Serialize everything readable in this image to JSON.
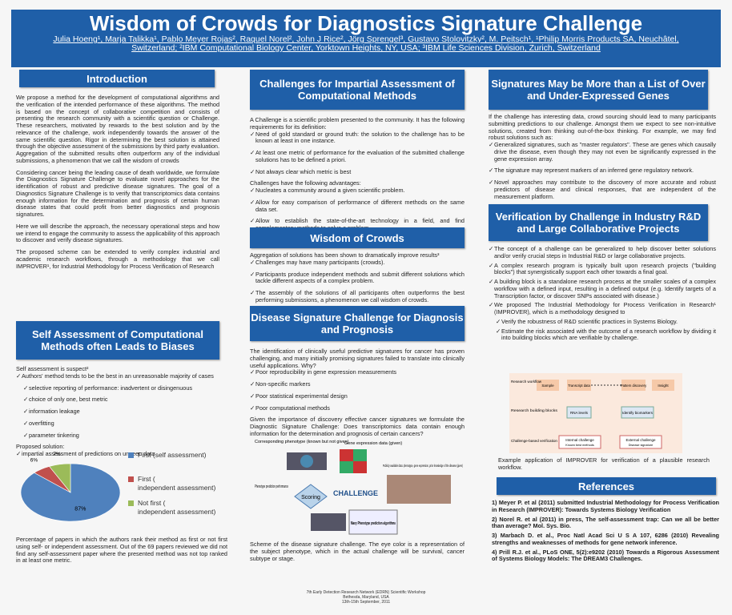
{
  "header": {
    "title": "Wisdom of Crowds for Diagnostics Signature Challenge",
    "authors": "Julia Hoeng¹, Marja Talikka¹, Pablo Meyer Rojas², Raquel Norel², John J Rice², Jörg Sprengel³, Gustavo Stolovitzky², M. Peitsch¹, ¹Philip Morris Products SA, Neuchâtel, Switzerland; ²IBM Computational Biology Center, Yorktown Heights, NY, USA; ³IBM Life Sciences Division, Zurich, Switzerland"
  },
  "intro": {
    "heading": "Introduction",
    "paragraphs": [
      "We propose a method for the development of computational algorithms and the verification of the intended performance of these algorithms. The method is based on the concept of collaborative competition and consists of presenting the research community with a scientific question or Challenge. These researchers, motivated by rewards to the best solution and by the relevance of the challenge, work independently towards the answer of the same scientific question. Rigor in determining the best solution is attained through the objective assessment of the submissions by third party evaluation. Aggregation of the submitted results often outperform any of the individual submissions, a phenomenon that we call the wisdom of crowds",
      "Considering cancer being the leading cause of death worldwide, we formulate the Diagnostics Signature Challenge to evaluate novel approaches for the identification of robust and predictive disease signatures. The goal of a Diagnostics Signature Challenge is to verify that transcriptomics data contains enough information for the determination and prognosis of certain human disease states that could profit from better diagnostics and prognosis signatures.",
      "Here we will describe the approach, the necessary operational steps and how we intend to engage the community to assess the applicability of this approach to discover and verify disease signatures.",
      "The proposed scheme can be extended to verify complex industrial and academic research workflows, through a methodology that we call IMPROVER¹, for Industrial Methodology for Process Verification of Research"
    ]
  },
  "self": {
    "heading": "Self Assessment of Computational Methods often Leads to Biases",
    "lead": "Self assessment is suspect²",
    "item": "Authors' method tends to be the best in an unreasonable majority of cases",
    "subitems": [
      "selective reporting of performance: inadvertent or disingenuous",
      "choice of only one, best metric",
      "information leakage",
      "overfitting",
      "parameter tinkering"
    ],
    "solution": "Proposed solution:",
    "solution_item": "impartial assessment of predictions on unseen data",
    "caption": "Percentage of papers in which the authors rank their method as first or not first using self- or independent assessment. Out of the 69 papers reviewed we did not find any self-assessment paper where the presented method was not top ranked in at least one metric."
  },
  "pie": {
    "type": "pie",
    "categories": [
      "First (self assessment)",
      "First (independent assessment)",
      "Not first (independent assessment)"
    ],
    "values": [
      87,
      6,
      7
    ],
    "value_labels": [
      "87%",
      "6%",
      "7%"
    ],
    "colors": [
      "#4f81bd",
      "#c0504d",
      "#9bbb59"
    ]
  },
  "challenges": {
    "heading": "Challenges for Impartial Assessment of Computational Methods",
    "lead": "A Challenge is a scientific problem presented to the community. It has the following requirements for its definition:",
    "items": [
      "Need of gold standard or ground truth: the solution to the challenge has to be known at least in one instance.",
      "At least one metric of performance for the evaluation of the submitted challenge solutions has to be defined a priori.",
      "Not always clear which metric is best"
    ],
    "advantages": "Challenges have the following advantages:",
    "adv_items": [
      "Nucleates a community around a given scientific problem.",
      "Allow for easy comparison of performance of different methods on the same data set.",
      "Allow to establish the state-of-the-art technology in a field, and find complementary methods to solve a problem."
    ]
  },
  "wisdom": {
    "heading": "Wisdom of Crowds",
    "lead": "Aggregation of solutions has been shown to dramatically improve results³",
    "items": [
      "Challenges may have many participants (crowds).",
      "Participants produce independent methods and submit different solutions which tackle different aspects of a complex problem.",
      "The assembly of the solutions of all participants often outperforms the best performing submissions, a phenomenon we call wisdom of crowds."
    ]
  },
  "disease": {
    "heading": "Disease Signature Challenge for Diagnosis and Prognosis",
    "lead": "The identification of clinically useful predictive signatures for cancer has proven challenging, and many initially promising signatures failed to translate into clinically useful applications. Why?",
    "items": [
      "Poor reproducibility in gene expression measurements",
      "Non-specific markers",
      "Poor statistical experimental design",
      "Poor computational methods"
    ],
    "follow": "Given the importance of discovery effective cancer signatures we formulate the Diagnostic Signature Challenge: Does transcriptomics data contain enough information for the determination and prognosis of certain cancers?",
    "scheme": {
      "phenotype": "Corresponding phenotype (known but not given)",
      "expression": "Gene expression data (given)",
      "public": "Publicly available data: phenotype, gene expression, prior knowledge of the disease (given)",
      "performance": "Phenotype prediction performance",
      "scoring": "Scoring",
      "challenge": "CHALLENGE",
      "algorithms": "Many Phenotype prediction algorithms"
    },
    "caption": "Scheme of the disease signature challenge. The eye color is a representation of the subject phenotype, which in the actual challenge will be survival, cancer subtype or stage."
  },
  "signatures": {
    "heading": "Signatures May be More than a List of Over and Under-Expressed Genes",
    "lead": "If the challenge has interesting data, crowd sourcing should lead to many participants submitting predictions to our challenge. Amongst them we expect to see non-intuitive solutions, created from thinking out-of-the-box thinking. For example, we may find robust solutions such as:",
    "items": [
      "Generalized signatures, such as \"master regulators\". These are genes which causally drive the disease, even though they may not even be significantly expressed in the gene expression array.",
      "The signature may represent markers of an inferred gene regulatory network.",
      "Novel approaches may contribute to the discovery of more accurate and robust predictors of disease and clinical responses, that are independent of the measurement platform."
    ]
  },
  "verification": {
    "heading": "Verification by Challenge in Industry R&D and Large Collaborative Projects",
    "items": [
      "The concept of a challenge can be generalized to help discover better solutions and/or verify crucial steps in Industrial R&D or large collaborative projects.",
      "A complex research program is typically built upon research projects (\"building blocks\") that synergistically support each other towards a final goal.",
      "A building block is a standalone research process at the smaller scales of a complex workflow with a defined input, resulting in a defined output (e.g. Identify targets of a Transcription factor, or discover SNPs associated with disease.)",
      "We proposed The Industrial Methodology for Process Verification in Research¹ (IMPROVER), which is a methodology designed to"
    ],
    "subitems": [
      "Verify the robustness of R&D scientific practices in Systems Biology.",
      "Estimate the risk associated with the outcome of a research workflow by dividing it into building blocks which are verifiable by challenge."
    ],
    "diagram": {
      "workflow": "Research workflow",
      "sample": "Sample",
      "transcript": "Transcript data",
      "pattern": "Pattern discovery",
      "insight": "Insight",
      "blocks": "Research building blocks",
      "rna": "RNA levels",
      "biomarkers": "Identify biomarkers",
      "verif": "Challenge-based verification",
      "internal": "Internal challenge",
      "internal_sub": "Known best methods",
      "external": "External challenge",
      "external_sub": "Disease signature"
    },
    "caption": "Example application of IMPROVER for verification of a plausible research workflow."
  },
  "references": {
    "heading": "References",
    "items": [
      "1) Meyer P. et al (2011) submitted Industrial Methodology for Process Verification in Research (IMPROVER): Towards Systems Biology Verification",
      "2) Norel R. et al (2011) in press, The self-assessment trap: Can we all be better than average? Mol. Sys. Bio.",
      "3) Marbach D. et al., Proc Natl Acad Sci U S A 107, 6286 (2010) Revealing strengths and weaknesses of methods for gene network inference.",
      "4) Prill R.J. et al., PLoS ONE, 5(2):e9202 (2010) Towards a Rigorous Assessment of Systems Biology Models: The DREAM3 Challenges."
    ]
  },
  "footer": [
    "7th Early Detection Research Network (EDRN) Scientific Workshop",
    "Bethesda, Maryland, USA",
    "13th-15th September, 2011"
  ]
}
